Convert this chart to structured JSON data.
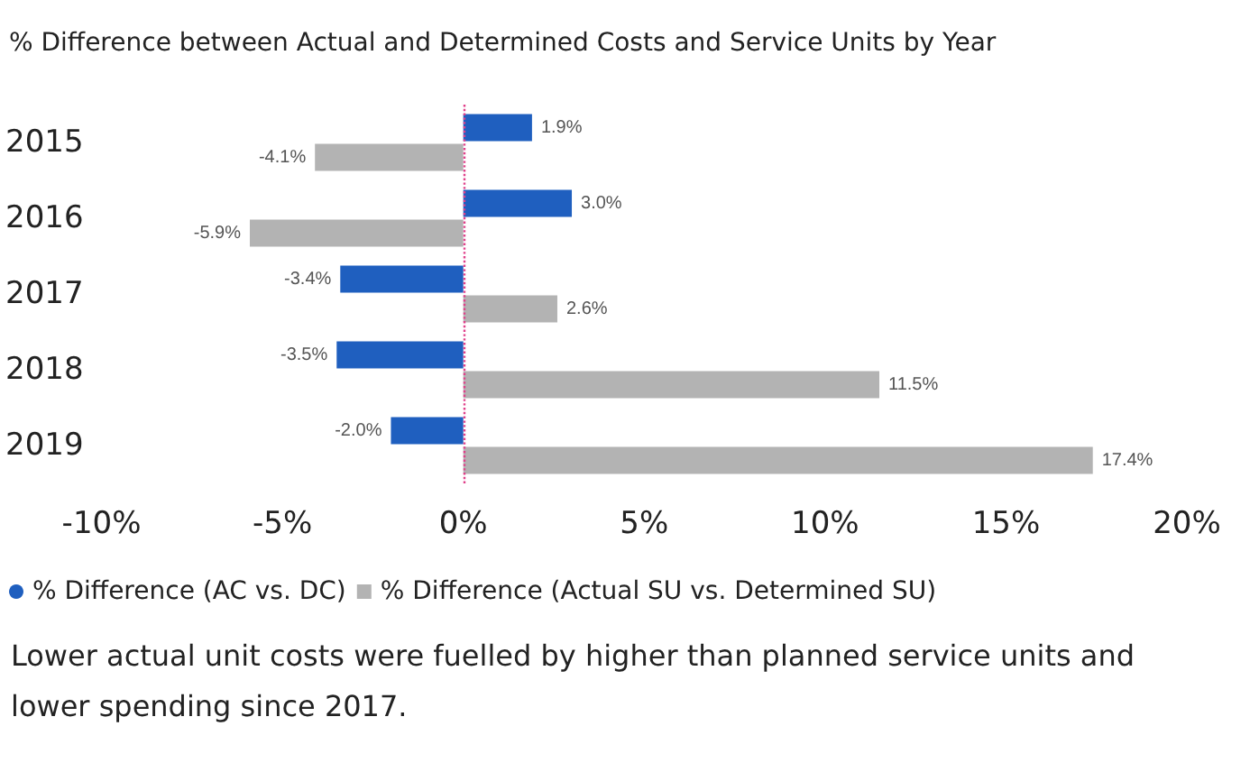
{
  "chart_data": {
    "type": "bar",
    "orientation": "horizontal",
    "title": "% Difference between Actual and Determined Costs and Service Units by Year",
    "categories": [
      "2015",
      "2016",
      "2017",
      "2018",
      "2019"
    ],
    "series": [
      {
        "name": "% Difference (AC vs. DC)",
        "color": "#1f5fbf",
        "values": [
          1.9,
          3.0,
          -3.4,
          -3.5,
          -2.0
        ],
        "value_labels": [
          "1.9%",
          "3.0%",
          "-3.4%",
          "-3.5%",
          "-2.0%"
        ]
      },
      {
        "name": "% Difference (Actual SU vs. Determined SU)",
        "color": "#b3b3b3",
        "values": [
          -4.1,
          -5.9,
          2.6,
          11.5,
          17.4
        ],
        "value_labels": [
          "-4.1%",
          "-5.9%",
          "2.6%",
          "11.5%",
          "17.4%"
        ]
      }
    ],
    "xlim": [
      -10,
      20
    ],
    "xticks": [
      {
        "value": -10,
        "label": "-10%"
      },
      {
        "value": -5,
        "label": "-5%"
      },
      {
        "value": 0,
        "label": "0%"
      },
      {
        "value": 5,
        "label": "5%"
      },
      {
        "value": 10,
        "label": "10%"
      },
      {
        "value": 15,
        "label": "15%"
      },
      {
        "value": 20,
        "label": "20%"
      }
    ],
    "ref_lines": [
      {
        "axis": "x",
        "value": 0,
        "color": "#e0408a",
        "line_style": "dotted"
      }
    ],
    "grid": false,
    "legend": "bottom",
    "annotations": [
      "Lower actual unit costs were fuelled by higher than planned service units and lower spending since 2017."
    ]
  }
}
